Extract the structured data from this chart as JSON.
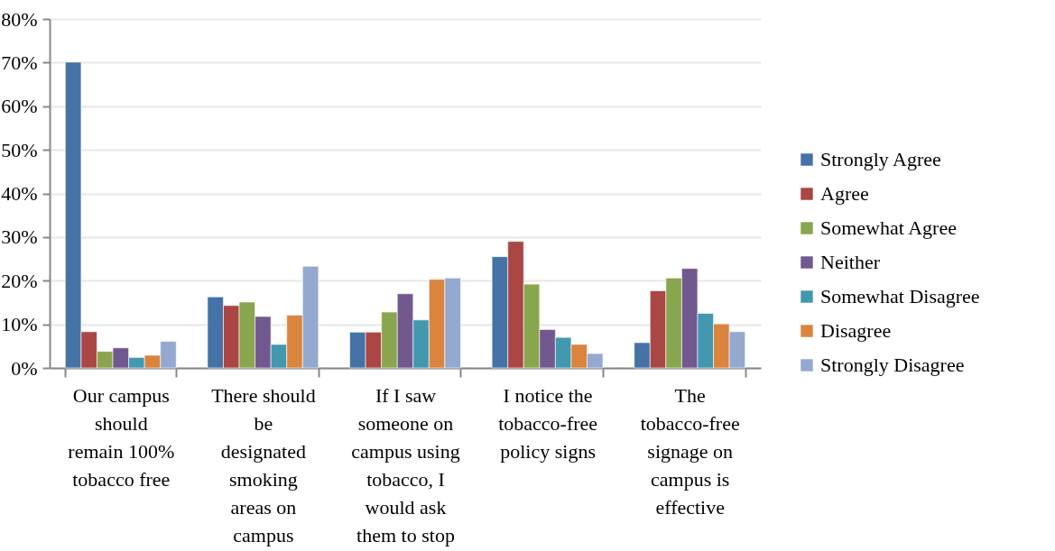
{
  "chart_data": {
    "type": "bar",
    "categories": [
      "Our campus should remain 100% tobacco free",
      "There should be designated smoking areas on campus",
      "If I saw someone on campus using tobacco, I would ask them to stop",
      "I notice the tobacco-free policy signs",
      "The tobacco-free signage on campus is effective"
    ],
    "series": [
      {
        "name": "Strongly Agree",
        "color": "#4572a7",
        "values": [
          70.1,
          16.3,
          8.2,
          25.5,
          5.8
        ]
      },
      {
        "name": "Agree",
        "color": "#aa4643",
        "values": [
          8.3,
          14.3,
          8.2,
          29.0,
          17.7
        ]
      },
      {
        "name": "Somewhat Agree",
        "color": "#89a54e",
        "values": [
          3.8,
          15.1,
          12.8,
          19.2,
          20.6
        ]
      },
      {
        "name": "Neither",
        "color": "#71588f",
        "values": [
          4.6,
          11.8,
          17.0,
          8.8,
          22.8
        ]
      },
      {
        "name": "Somewhat Disagree",
        "color": "#4198af",
        "values": [
          2.4,
          5.4,
          11.0,
          7.0,
          12.5
        ]
      },
      {
        "name": "Disagree",
        "color": "#db843d",
        "values": [
          2.9,
          12.1,
          20.3,
          5.4,
          10.1
        ]
      },
      {
        "name": "Strongly Disagree",
        "color": "#93a9cf",
        "values": [
          6.1,
          23.3,
          20.6,
          3.3,
          8.3
        ]
      }
    ],
    "ylim": [
      0,
      80
    ],
    "yticks": [
      {
        "value": 0,
        "label": "0%"
      },
      {
        "value": 10,
        "label": "10%"
      },
      {
        "value": 20,
        "label": "20%"
      },
      {
        "value": 30,
        "label": "30%"
      },
      {
        "value": 40,
        "label": "40%"
      },
      {
        "value": 50,
        "label": "50%"
      },
      {
        "value": 60,
        "label": "60%"
      },
      {
        "value": 70,
        "label": "70%"
      },
      {
        "value": 80,
        "label": "80%"
      }
    ],
    "grid": "y",
    "legend": "right"
  }
}
